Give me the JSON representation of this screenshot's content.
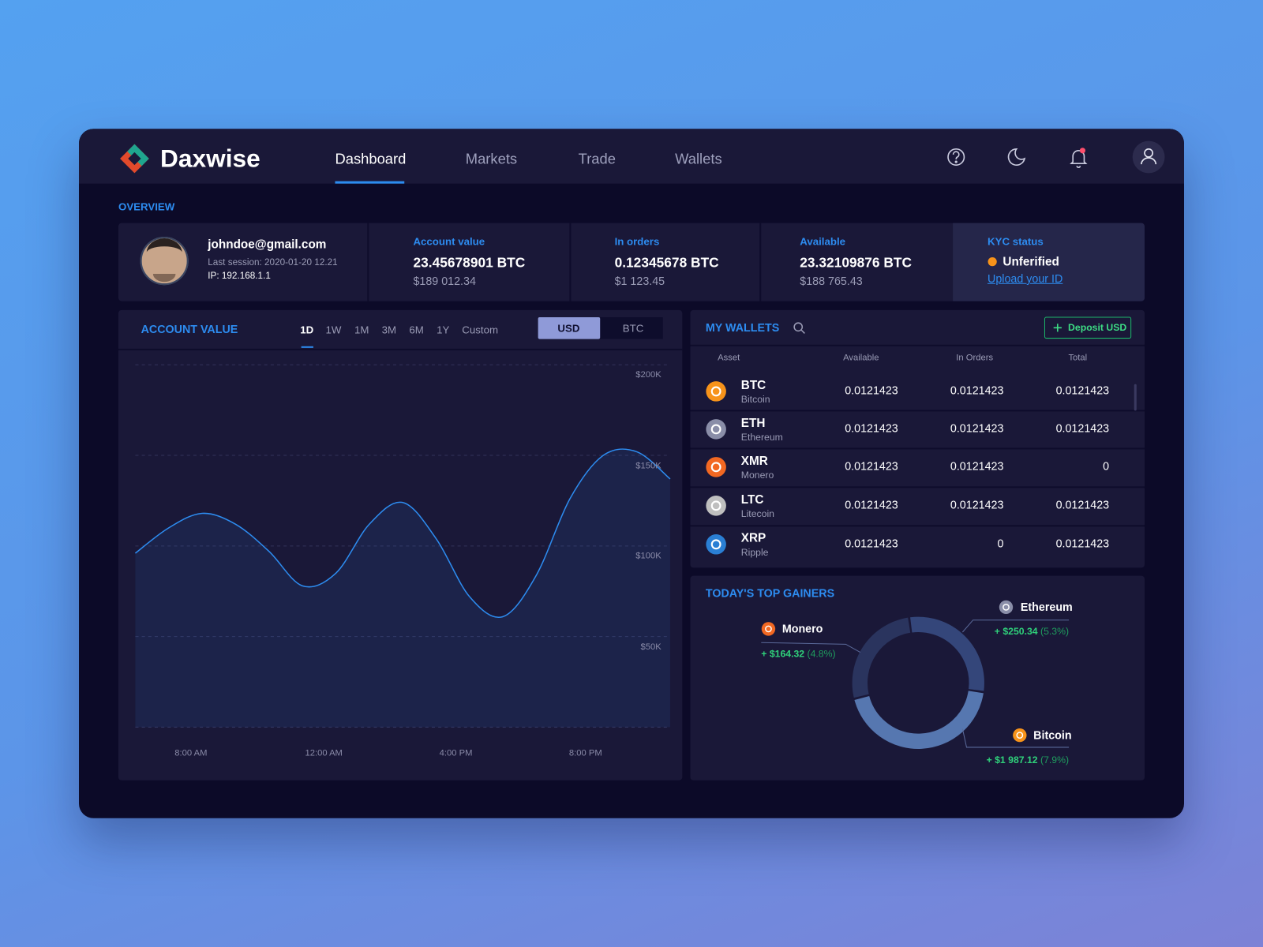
{
  "header": {
    "brand": "Daxwise",
    "nav": [
      "Dashboard",
      "Markets",
      "Trade",
      "Wallets"
    ]
  },
  "overview": {
    "title": "OVERVIEW",
    "email": "johndoe@gmail.com",
    "last_session": "Last session: 2020-01-20 12.21",
    "ip": "IP: 192.168.1.1",
    "stats": [
      {
        "label": "Account value",
        "btc": "23.45678901 BTC",
        "usd": "$189 012.34"
      },
      {
        "label": "In orders",
        "btc": "0.12345678 BTC",
        "usd": "$1 123.45"
      },
      {
        "label": "Available",
        "btc": "23.32109876 BTC",
        "usd": "$188 765.43"
      }
    ],
    "kyc": {
      "label": "KYC status",
      "status": "Unferified",
      "link": "Upload your ID"
    }
  },
  "chart_controls": {
    "periods": [
      "1D",
      "1W",
      "1M",
      "3M",
      "6M",
      "1Y",
      "Custom"
    ],
    "currencies": [
      "USD",
      "BTC"
    ]
  },
  "wallets": {
    "title": "MY WALLETS",
    "deposit": "Deposit USD",
    "columns": [
      "Asset",
      "Available",
      "In Orders",
      "Total"
    ],
    "rows": [
      [
        "BTC",
        "Bitcoin",
        "0.0121423",
        "0.0121423",
        "0.0121423"
      ],
      [
        "ETH",
        "Ethereum",
        "0.0121423",
        "0.0121423",
        "0.0121423"
      ],
      [
        "XMR",
        "Monero",
        "0.0121423",
        "0.0121423",
        "0"
      ],
      [
        "LTC",
        "Litecoin",
        "0.0121423",
        "0.0121423",
        "0.0121423"
      ],
      [
        "XRP",
        "Ripple",
        "0.0121423",
        "0",
        "0.0121423"
      ]
    ]
  },
  "chart_data": [
    {
      "type": "line",
      "title": "ACCOUNT VALUE",
      "x_labels": [
        "8:00 AM",
        "12:00 AM",
        "4:00 PM",
        "8:00 PM"
      ],
      "series": [
        {
          "color": "#2d8cf0",
          "values": [
            96000,
            110000,
            118000,
            112000,
            97000,
            78000,
            85000,
            112000,
            124000,
            104000,
            72000,
            61000,
            84000,
            126000,
            150000,
            152000,
            137000
          ]
        }
      ],
      "ylim": [
        0,
        200000
      ],
      "yticks": [
        {
          "value": 200000,
          "label": "$200K"
        },
        {
          "value": 150000,
          "label": "$150K"
        },
        {
          "value": 100000,
          "label": "$100K"
        },
        {
          "value": 50000,
          "label": "$50K"
        }
      ],
      "grid": true
    },
    {
      "type": "donut",
      "title": "TODAY'S TOP GAINERS",
      "categories": [
        "Ethereum",
        "Bitcoin",
        "Monero"
      ],
      "changes": [
        "+ $250.34",
        "+ $1 987.12",
        "+ $164.32"
      ],
      "values": [
        5.3,
        7.9,
        4.8
      ],
      "value_labels": [
        "(5.3%)",
        "(7.9%)",
        "(4.8%)"
      ],
      "colors": [
        "#34467a",
        "#5677b0",
        "#2a345e"
      ]
    }
  ]
}
